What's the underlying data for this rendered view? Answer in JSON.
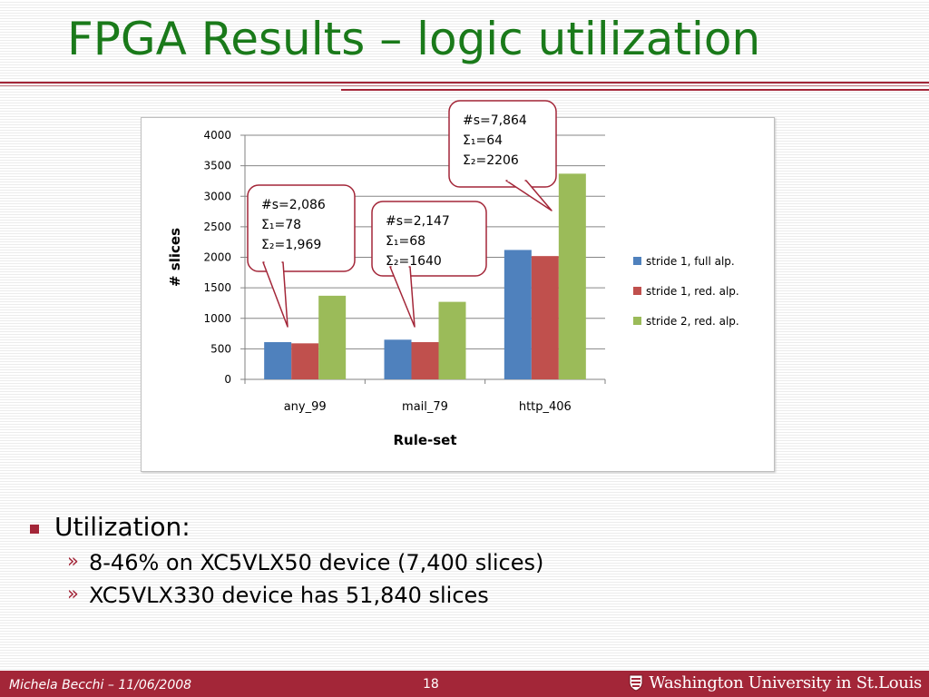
{
  "slide": {
    "title": "FPGA Results – logic utilization"
  },
  "bullets": {
    "main": "Utilization:",
    "subs": [
      "8-46% on XC5VLX50 device (7,400 slices)",
      "XC5VLX330 device has 51,840 slices"
    ],
    "sub_marker": "»"
  },
  "footer": {
    "author": "Michela Becchi –  11/06/2008",
    "page": "18",
    "university": "Washington University in St.Louis"
  },
  "colors": {
    "title_green": "#1a7a1a",
    "accent_red": "#a32638"
  },
  "chart_data": {
    "type": "bar",
    "categories": [
      "any_99",
      "mail_79",
      "http_406"
    ],
    "series": [
      {
        "name": "stride 1, full alp.",
        "color": "#4f81bd",
        "values": [
          610,
          650,
          2120
        ]
      },
      {
        "name": "stride 1, red. alp.",
        "color": "#c0504d",
        "values": [
          590,
          610,
          2020
        ]
      },
      {
        "name": "stride 2, red. alp.",
        "color": "#9bbb59",
        "values": [
          1370,
          1270,
          3370
        ]
      }
    ],
    "xlabel": "Rule-set",
    "ylabel": "# slices",
    "ylim": [
      0,
      4000
    ],
    "yticks": [
      0,
      500,
      1000,
      1500,
      2000,
      2500,
      3000,
      3500,
      4000
    ],
    "grid": true,
    "legend_position": "right",
    "annotations": [
      {
        "category": "any_99",
        "lines": [
          "#s=2,086",
          "Σ₁=78",
          "Σ₂=1,969"
        ]
      },
      {
        "category": "mail_79",
        "lines": [
          "#s=2,147",
          "Σ₁=68",
          "Σ₂=1640"
        ]
      },
      {
        "category": "http_406",
        "lines": [
          "#s=7,864",
          "Σ₁=64",
          "Σ₂=2206"
        ]
      }
    ]
  }
}
